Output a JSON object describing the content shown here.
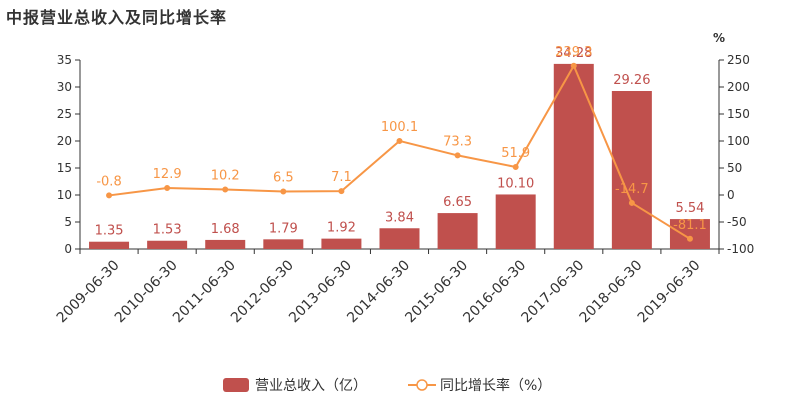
{
  "title": "中报营业总收入及同比增长率",
  "colors": {
    "bar": "#c0504d",
    "line": "#f79646",
    "text": "#333333",
    "axis": "#333333"
  },
  "chart_data": {
    "type": "bar",
    "categories": [
      "2009-06-30",
      "2010-06-30",
      "2011-06-30",
      "2012-06-30",
      "2013-06-30",
      "2014-06-30",
      "2015-06-30",
      "2016-06-30",
      "2017-06-30",
      "2018-06-30",
      "2019-06-30"
    ],
    "series": [
      {
        "name": "营业总收入（亿）",
        "type": "bar",
        "axis": "left",
        "values": [
          1.35,
          1.53,
          1.68,
          1.79,
          1.92,
          3.84,
          6.65,
          10.1,
          34.28,
          29.26,
          5.54
        ],
        "labels": [
          "1.35",
          "1.53",
          "1.68",
          "1.79",
          "1.92",
          "3.84",
          "6.65",
          "10.10",
          "34.28",
          "29.26",
          "5.54"
        ]
      },
      {
        "name": "同比增长率（%）",
        "type": "line",
        "axis": "right",
        "values": [
          -0.8,
          12.9,
          10.2,
          6.5,
          7.1,
          100.1,
          73.3,
          51.9,
          239.3,
          -14.7,
          -81.1
        ],
        "labels": [
          "-0.8",
          "12.9",
          "10.2",
          "6.5",
          "7.1",
          "100.1",
          "73.3",
          "51.9",
          "239.3",
          "-14.7",
          "-81.1"
        ]
      }
    ],
    "y_left": {
      "min": 0,
      "max": 35,
      "ticks": [
        "0",
        "5",
        "10",
        "15",
        "20",
        "25",
        "30",
        "35"
      ]
    },
    "y_right": {
      "min": -100,
      "max": 250,
      "ticks": [
        "-100",
        "-50",
        "0",
        "50",
        "100",
        "150",
        "200",
        "250"
      ],
      "unit": "%"
    },
    "legend_position": "bottom-center",
    "grid": false
  }
}
